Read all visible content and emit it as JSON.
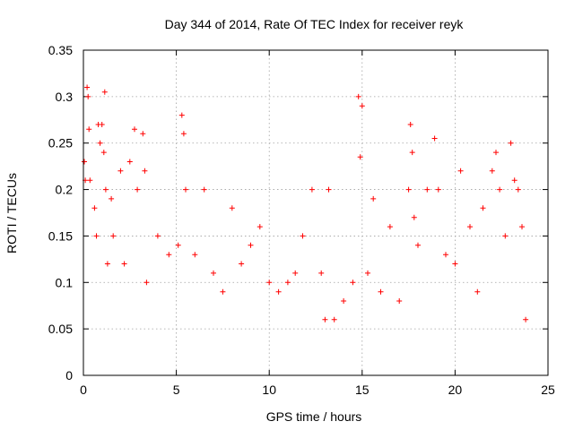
{
  "chart_data": {
    "type": "scatter",
    "title": "Day 344 of 2014, Rate Of TEC Index for receiver reyk",
    "xlabel": "GPS time / hours",
    "ylabel": "ROTI / TECUs",
    "xlim": [
      0,
      25
    ],
    "ylim": [
      0,
      0.35
    ],
    "x_ticks": [
      0,
      5,
      10,
      15,
      20,
      25
    ],
    "y_ticks": [
      0,
      0.05,
      0.1,
      0.15,
      0.2,
      0.25,
      0.3,
      0.35
    ],
    "x_tick_labels": [
      "0",
      "5",
      "10",
      "15",
      "20",
      "25"
    ],
    "y_tick_labels": [
      "0",
      "0.05",
      "0.1",
      "0.15",
      "0.2",
      "0.25",
      "0.3",
      "0.35"
    ],
    "grid": true,
    "marker": "+",
    "color": "#ff0000",
    "data_time_range_hours": [
      0,
      23.9
    ],
    "series": [
      {
        "name": "ROTI",
        "x": [
          0.05,
          0.1,
          0.2,
          0.25,
          0.3,
          0.35,
          0.6,
          0.7,
          0.8,
          0.9,
          1.0,
          1.1,
          1.15,
          1.2,
          1.3,
          1.5,
          1.6,
          2.0,
          2.2,
          2.5,
          2.75,
          2.9,
          3.2,
          3.3,
          3.4,
          4.0,
          4.6,
          5.1,
          5.3,
          5.4,
          5.5,
          6.0,
          6.5,
          7.0,
          7.5,
          8.0,
          8.5,
          9.0,
          9.5,
          10.0,
          10.5,
          11.0,
          11.4,
          11.8,
          12.3,
          12.8,
          13.0,
          13.2,
          13.5,
          14.0,
          14.5,
          14.8,
          14.9,
          15.0,
          15.3,
          15.6,
          16.0,
          16.5,
          17.0,
          17.5,
          17.6,
          17.7,
          17.8,
          18.0,
          18.5,
          18.9,
          19.1,
          19.5,
          20.0,
          20.3,
          20.8,
          21.2,
          21.5,
          22.0,
          22.2,
          22.4,
          22.7,
          23.0,
          23.2,
          23.4,
          23.6,
          23.8
        ],
        "y": [
          0.23,
          0.21,
          0.31,
          0.3,
          0.265,
          0.21,
          0.18,
          0.15,
          0.27,
          0.25,
          0.27,
          0.24,
          0.305,
          0.2,
          0.12,
          0.19,
          0.15,
          0.22,
          0.12,
          0.23,
          0.265,
          0.2,
          0.26,
          0.22,
          0.1,
          0.15,
          0.13,
          0.14,
          0.28,
          0.26,
          0.2,
          0.13,
          0.2,
          0.11,
          0.09,
          0.18,
          0.12,
          0.14,
          0.16,
          0.1,
          0.09,
          0.1,
          0.11,
          0.15,
          0.2,
          0.11,
          0.06,
          0.2,
          0.06,
          0.08,
          0.1,
          0.3,
          0.235,
          0.29,
          0.11,
          0.19,
          0.09,
          0.16,
          0.08,
          0.2,
          0.27,
          0.24,
          0.17,
          0.14,
          0.2,
          0.255,
          0.2,
          0.13,
          0.12,
          0.22,
          0.16,
          0.09,
          0.18,
          0.22,
          0.24,
          0.2,
          0.15,
          0.25,
          0.21,
          0.2,
          0.16,
          0.06
        ]
      }
    ]
  }
}
